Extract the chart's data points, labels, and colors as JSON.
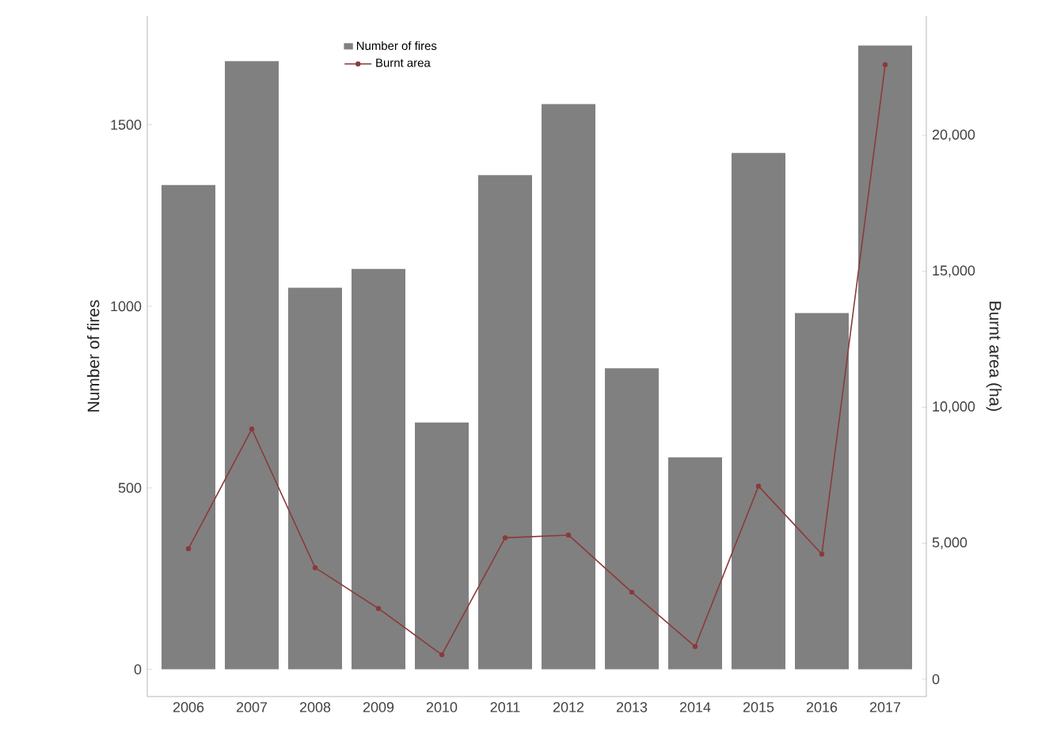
{
  "chart_data": {
    "type": "bar",
    "ylabel": "Number of fires",
    "y2label": "Burnt area (ha)",
    "categories": [
      "2006",
      "2007",
      "2008",
      "2009",
      "2010",
      "2011",
      "2012",
      "2013",
      "2014",
      "2015",
      "2016",
      "2017"
    ],
    "series": [
      {
        "name": "Number of fires",
        "color": "#808080",
        "values": [
          1334,
          1675,
          1051,
          1103,
          680,
          1361,
          1557,
          829,
          584,
          1422,
          981,
          1718
        ]
      },
      {
        "name": "Burnt area",
        "type": "line",
        "axis": "y2",
        "color": "#8b3a3a",
        "marker": "circle",
        "line_style": "solid",
        "values": [
          4800,
          9200,
          4100,
          2600,
          900,
          5200,
          5300,
          3200,
          1200,
          7100,
          4600,
          22600
        ]
      }
    ],
    "ylim": [
      -75,
      1800
    ],
    "yticks": [
      0,
      500,
      1000,
      1500
    ],
    "y2lim": [
      -640,
      24400
    ],
    "y2ticks": [
      0,
      {
        "value": 5000,
        "label": "5,000"
      },
      {
        "value": 10000,
        "label": "10,000"
      },
      {
        "value": 15000,
        "label": "15,000"
      },
      {
        "value": 20000,
        "label": "20,000"
      }
    ],
    "legend": "top"
  }
}
